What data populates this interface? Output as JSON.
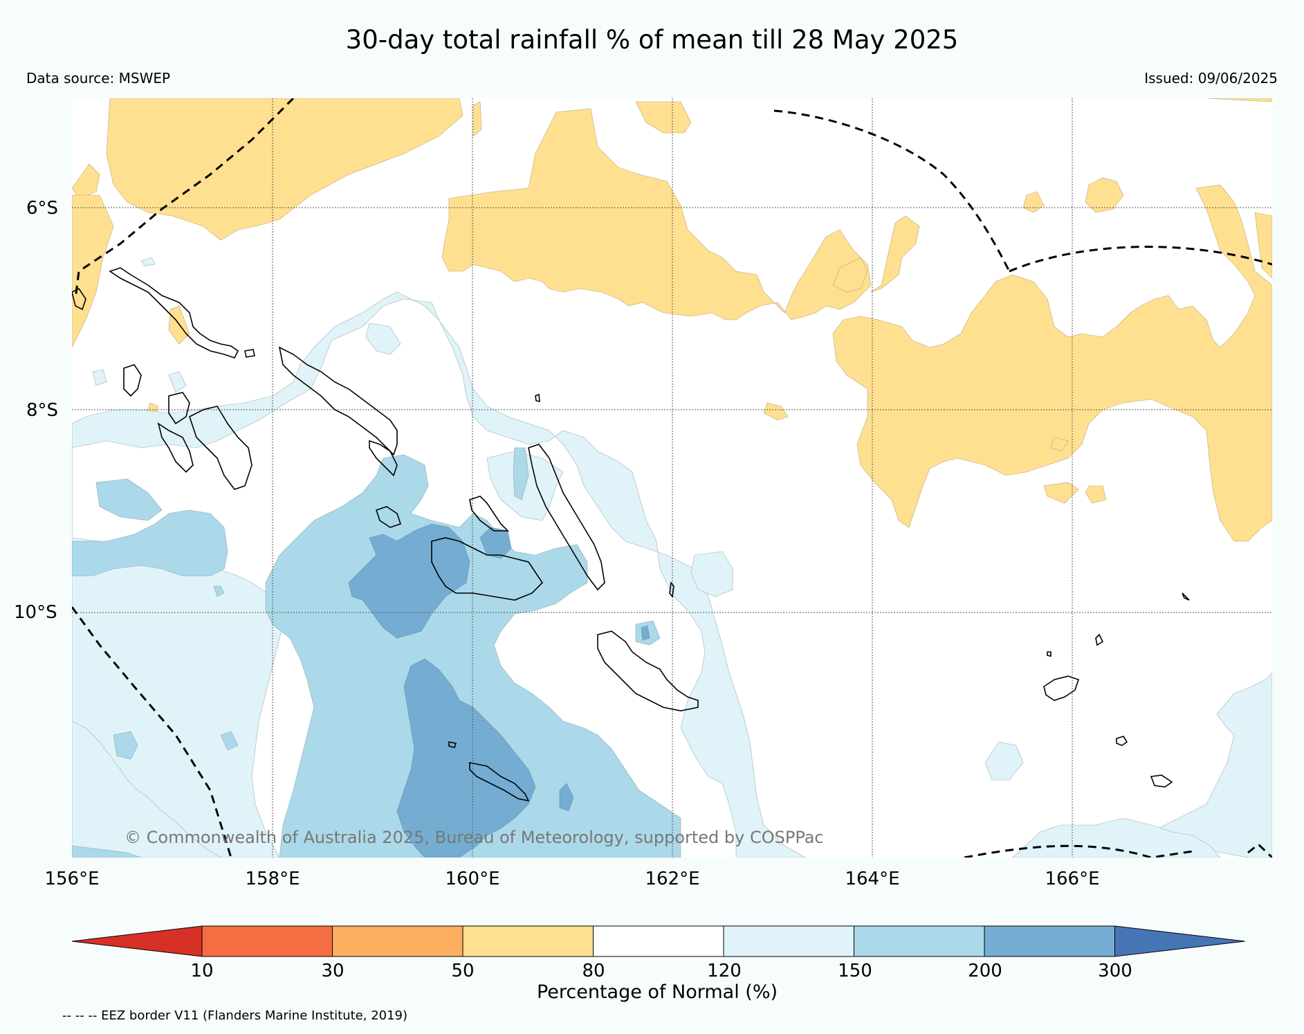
{
  "title": "30-day total rainfall % of mean till 28 May 2025",
  "data_source": "Data source: MSWEP",
  "issued": "Issued: 09/06/2025",
  "copyright": "© Commonwealth of Australia 2025, Bureau of Meteorology, supported by COSPPac",
  "latitude_labels": [
    "6°S",
    "8°S",
    "10°S"
  ],
  "longitude_labels": [
    "156°E",
    "158°E",
    "160°E",
    "162°E",
    "164°E",
    "166°E"
  ],
  "colorbar": {
    "title": "Percentage of Normal (%)",
    "ticks": [
      "10",
      "30",
      "50",
      "80",
      "120",
      "150",
      "200",
      "300"
    ],
    "colors": [
      "#d73027",
      "#f46d43",
      "#fdae61",
      "#fee090",
      "#ffffff",
      "#e0f3f8",
      "#abd9e9",
      "#74add1",
      "#4575b4"
    ]
  },
  "footnote": "-- -- -- EEZ border V11 (Flanders Marine Institute, 2019)"
}
